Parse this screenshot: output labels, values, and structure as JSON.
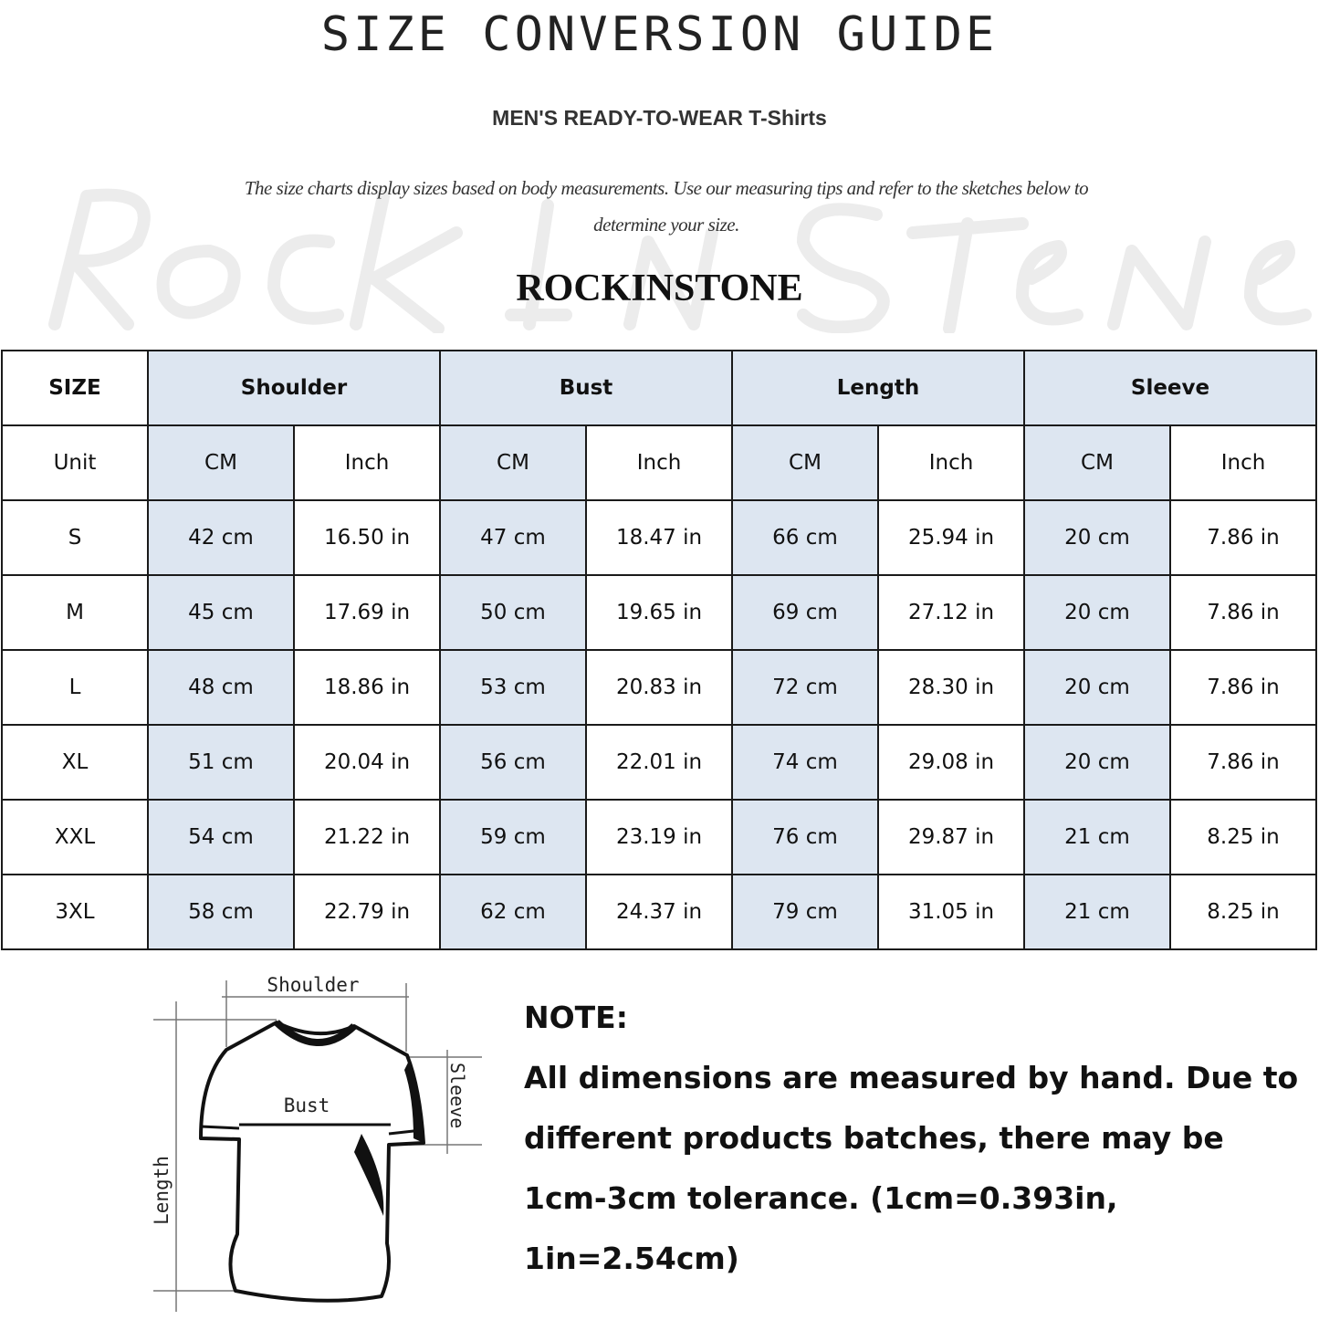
{
  "header": {
    "title": "SIZE CONVERSION GUIDE",
    "subtitle": "MEN'S READY-TO-WEAR T-Shirts",
    "intro": "The size charts display sizes based on body measurements. Use our measuring tips and refer to the sketches below to determine your size.",
    "watermark": "RockInStone",
    "brand": "ROCKINSTONE"
  },
  "table": {
    "size_label": "SIZE",
    "unit_label": "Unit",
    "groups": [
      "Shoulder",
      "Bust",
      "Length",
      "Sleeve"
    ],
    "units": [
      "CM",
      "Inch",
      "CM",
      "Inch",
      "CM",
      "Inch",
      "CM",
      "Inch"
    ],
    "rows": [
      {
        "size": "S",
        "cells": [
          "42 cm",
          "16.50 in",
          "47 cm",
          "18.47  in",
          "66 cm",
          "25.94  in",
          "20 cm",
          "7.86  in"
        ]
      },
      {
        "size": "M",
        "cells": [
          "45 cm",
          "17.69  in",
          "50 cm",
          "19.65  in",
          "69 cm",
          "27.12  in",
          "20 cm",
          "7.86  in"
        ]
      },
      {
        "size": "L",
        "cells": [
          "48 cm",
          "18.86  in",
          "53 cm",
          "20.83  in",
          "72 cm",
          "28.30  in",
          "20 cm",
          "7.86  in"
        ]
      },
      {
        "size": "XL",
        "cells": [
          "51 cm",
          "20.04  in",
          "56 cm",
          "22.01  in",
          "74 cm",
          "29.08  in",
          "20 cm",
          "7.86  in"
        ]
      },
      {
        "size": "XXL",
        "cells": [
          "54 cm",
          "21.22  in",
          "59 cm",
          "23.19  in",
          "76 cm",
          "29.87  in",
          "21 cm",
          "8.25  in"
        ]
      },
      {
        "size": "3XL",
        "cells": [
          "58 cm",
          "22.79  in",
          "62 cm",
          "24.37  in",
          "79 cm",
          "31.05  in",
          "21 cm",
          "8.25  in"
        ]
      }
    ],
    "highlight_color": "#dde6f1"
  },
  "diagram": {
    "shoulder": "Shoulder",
    "bust": "Bust",
    "sleeve": "Sleeve",
    "length": "Length"
  },
  "note": {
    "heading": "NOTE:",
    "lines": [
      "All dimensions are measured by hand. Due to",
      "different products batches, there may be",
      "1cm-3cm tolerance. (1cm=0.393in, 1in=2.54cm)"
    ]
  }
}
